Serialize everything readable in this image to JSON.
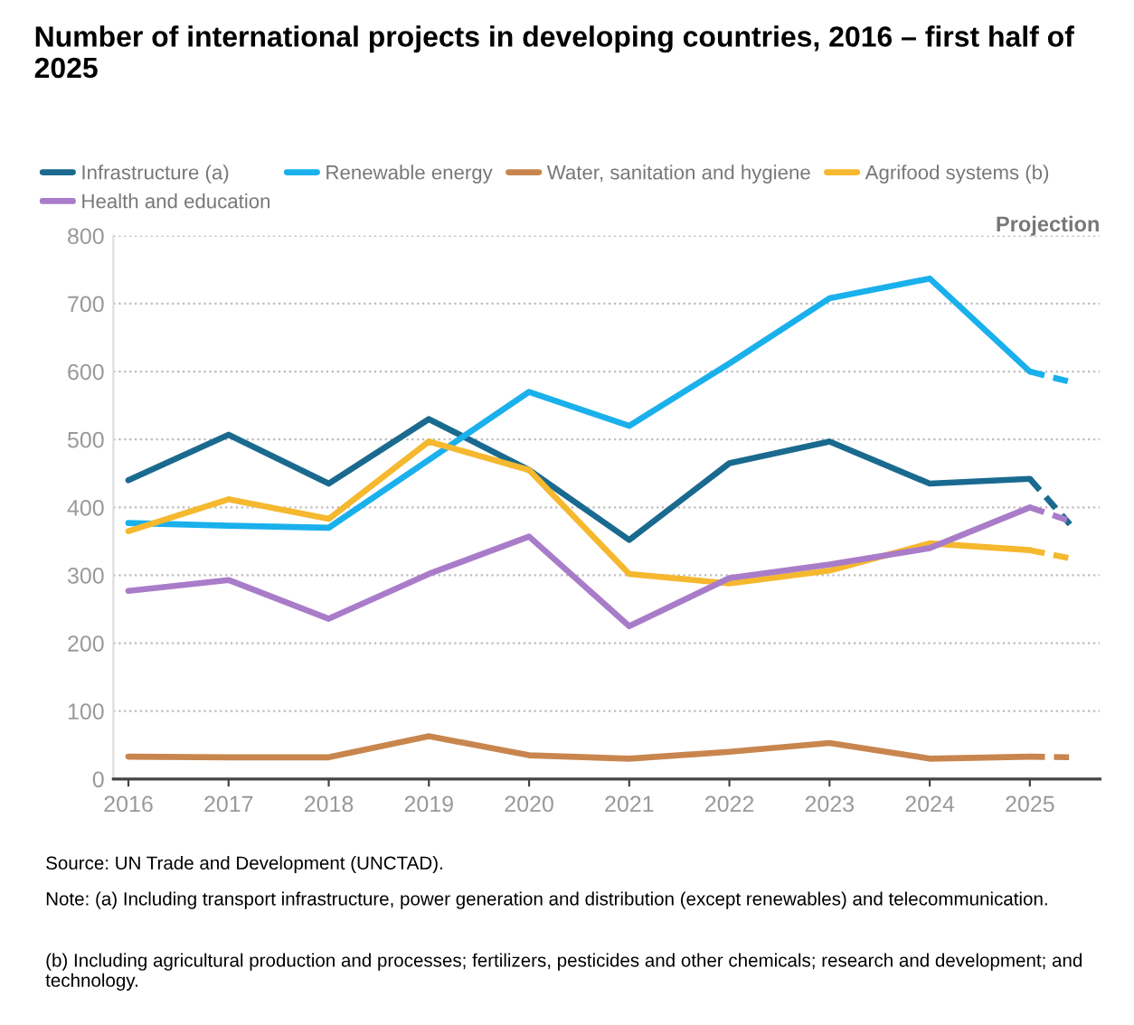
{
  "chart_data": {
    "type": "line",
    "title": "Number of international projects in developing countries, 2016 – first half of 2025",
    "x": [
      2016,
      2017,
      2018,
      2019,
      2020,
      2021,
      2022,
      2023,
      2024,
      2025,
      2025.4
    ],
    "series": [
      {
        "name": "Infrastructure (a)",
        "color": "#1a6a8f",
        "values": [
          440,
          507,
          435,
          530,
          455,
          352,
          465,
          497,
          435,
          442,
          null
        ]
      },
      {
        "name": "Renewable energy",
        "color": "#1ab0ec",
        "values": [
          377,
          373,
          370,
          470,
          570,
          520,
          612,
          708,
          737,
          600,
          null
        ]
      },
      {
        "name": "Water, sanitation and hygiene",
        "color": "#c8864e",
        "values": [
          33,
          32,
          32,
          63,
          35,
          30,
          40,
          53,
          30,
          33,
          null
        ]
      },
      {
        "name": "Agrifood systems (b)",
        "color": "#f5b82e",
        "values": [
          365,
          412,
          383,
          497,
          455,
          302,
          288,
          307,
          347,
          337,
          null
        ]
      },
      {
        "name": "Health and education",
        "color": "#a97cc9",
        "values": [
          277,
          293,
          236,
          302,
          357,
          225,
          296,
          316,
          340,
          400,
          null
        ]
      },
      {
        "color": "#1a6a8f",
        "values": [
          null,
          null,
          null,
          null,
          null,
          null,
          null,
          null,
          null,
          442,
          375
        ],
        "line_style": "dashed"
      },
      {
        "color": "#1ab0ec",
        "values": [
          null,
          null,
          null,
          null,
          null,
          null,
          null,
          null,
          null,
          600,
          585
        ],
        "line_style": "dashed"
      },
      {
        "color": "#c8864e",
        "values": [
          null,
          null,
          null,
          null,
          null,
          null,
          null,
          null,
          null,
          33,
          32
        ],
        "line_style": "dashed"
      },
      {
        "color": "#f5b82e",
        "values": [
          null,
          null,
          null,
          null,
          null,
          null,
          null,
          null,
          null,
          337,
          325
        ],
        "line_style": "dashed"
      },
      {
        "color": "#a97cc9",
        "values": [
          null,
          null,
          null,
          null,
          null,
          null,
          null,
          null,
          null,
          400,
          380
        ],
        "line_style": "dashed"
      }
    ],
    "xlim": [
      2015.85,
      2025.7
    ],
    "xticks": [
      2016,
      2017,
      2018,
      2019,
      2020,
      2021,
      2022,
      2023,
      2024,
      2025
    ],
    "ylim": [
      0,
      800
    ],
    "yticks": [
      0,
      100,
      200,
      300,
      400,
      500,
      600,
      700,
      800
    ],
    "grid": "y",
    "legend": "top",
    "line_style": "solid",
    "marker": "none",
    "annotations": [
      "Projection",
      "Source: UN Trade and Development (UNCTAD).",
      "Note: (a) Including transport infrastructure, power generation and distribution (except renewables) and telecommunication.",
      "(b) Including agricultural production and processes; fertilizers, pesticides and other chemicals; research and development; and technology."
    ]
  }
}
